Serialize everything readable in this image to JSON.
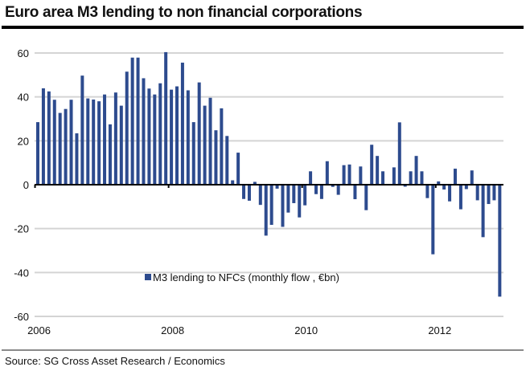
{
  "header": {
    "title": "Euro area M3 lending to non financial corporations"
  },
  "footer": {
    "source": "Source: SG Cross Asset Research / Economics"
  },
  "colors": {
    "bar": "#2d4b8e",
    "gridline": "#d4d4d4",
    "axis": "#000000"
  },
  "chart_data": {
    "type": "bar",
    "title": "Euro area M3 lending to non financial corporations",
    "xlabel": "",
    "ylabel": "",
    "ylim": [
      -60,
      60
    ],
    "yticks": [
      60,
      40,
      20,
      0,
      -20,
      -40,
      -60
    ],
    "ytick_labels": [
      "60",
      "40",
      "20",
      "0",
      "-20",
      "-40",
      "-60"
    ],
    "xticks": [
      "2006",
      "2008",
      "2010",
      "2012"
    ],
    "x_start": "2006-01",
    "frequency": "monthly",
    "grid": true,
    "legend": {
      "position": "center-bottom",
      "entries": [
        "M3 lending to NFCs  (monthly flow , €bn)"
      ]
    },
    "series": [
      {
        "name": "M3 lending to NFCs  (monthly flow , €bn)",
        "values": [
          28.5,
          43.9,
          42.5,
          38.7,
          32.7,
          34.5,
          38.7,
          23.4,
          49.7,
          39.3,
          38.8,
          38.0,
          41.1,
          27.5,
          42.0,
          36.0,
          51.5,
          57.9,
          57.9,
          48.5,
          43.8,
          41.1,
          46.2,
          60.4,
          43.3,
          44.8,
          55.6,
          43.0,
          28.5,
          46.6,
          36.0,
          39.6,
          24.8,
          34.8,
          22.2,
          2.0,
          14.6,
          -6.5,
          -7.3,
          1.3,
          -9.2,
          -23.2,
          -18.3,
          -1.8,
          -19.2,
          -12.7,
          -8.4,
          -14.9,
          -9.4,
          6.1,
          -4.3,
          -6.5,
          10.7,
          -1.0,
          -4.6,
          8.9,
          9.2,
          -6.6,
          8.3,
          -11.6,
          18.2,
          13.1,
          6.1,
          -0.3,
          7.9,
          28.4,
          -0.9,
          6.1,
          13.1,
          6.1,
          -6.1,
          -31.7,
          1.5,
          -2.2,
          -7.6,
          7.3,
          -11.2,
          -2.0,
          6.5,
          -7.1,
          -23.9,
          -8.8,
          -7.1,
          -51.0
        ]
      }
    ]
  }
}
